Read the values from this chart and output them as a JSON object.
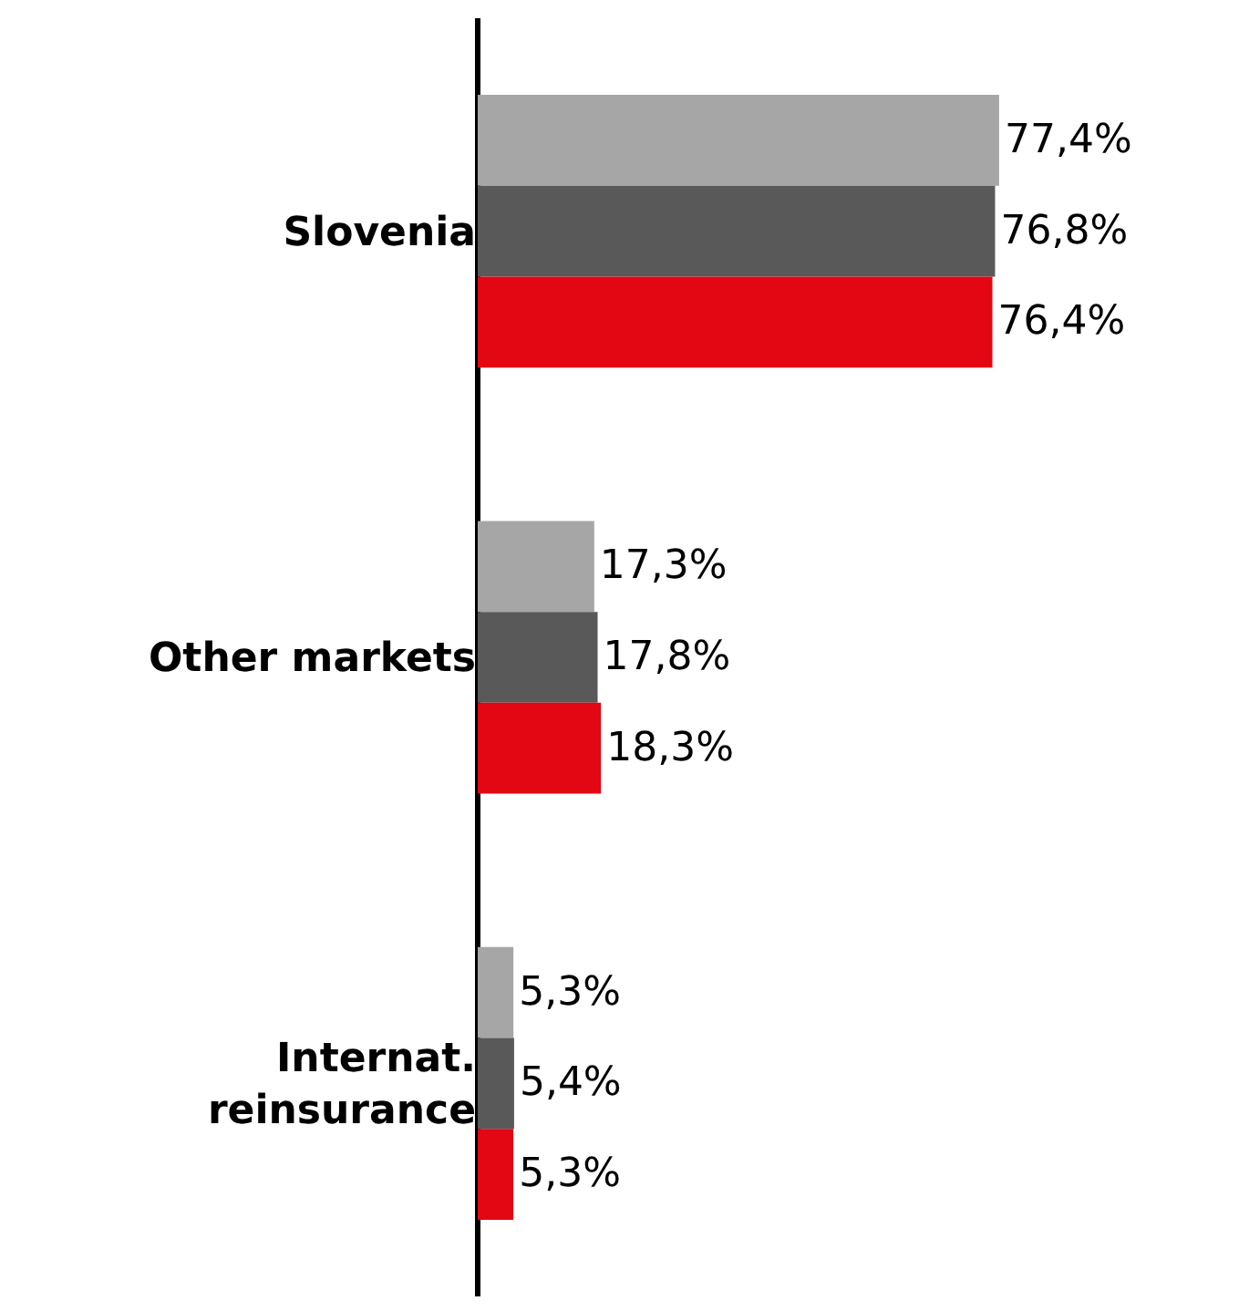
{
  "chart_data": {
    "type": "bar",
    "orientation": "horizontal",
    "categories": [
      "Slovenia",
      "Other markets",
      "Internat.\nreinsurance"
    ],
    "series": [
      {
        "color": "#a6a6a6",
        "values": [
          77.4,
          17.3,
          5.3
        ],
        "value_labels": [
          "77,4%",
          "17,3%",
          "5,3%"
        ]
      },
      {
        "color": "#595959",
        "values": [
          76.8,
          17.8,
          5.4
        ],
        "value_labels": [
          "76,8%",
          "17,8%",
          "5,4%"
        ]
      },
      {
        "color": "#e30613",
        "values": [
          76.4,
          18.3,
          5.3
        ],
        "value_labels": [
          "76,4%",
          "18,3%",
          "5,3%"
        ]
      }
    ],
    "tick_labels": "y",
    "grid": false
  }
}
